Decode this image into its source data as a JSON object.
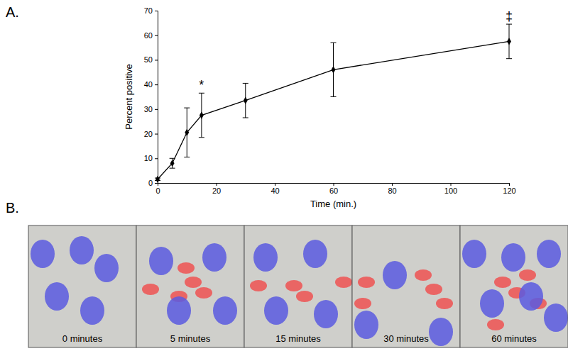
{
  "chart_data": {
    "type": "line",
    "x_label": "Time (min.)",
    "y_label": "Percent positive",
    "x": [
      0,
      5,
      10,
      15,
      30,
      60,
      120
    ],
    "values": [
      1.5,
      8,
      20.5,
      27.5,
      33.5,
      46,
      57.5
    ],
    "errors": [
      0.5,
      2,
      10,
      9,
      7,
      11,
      7
    ],
    "color": "#000000",
    "marker": "diamond",
    "xlim": [
      0,
      120
    ],
    "xticks": [
      0,
      20,
      40,
      60,
      80,
      100,
      120
    ],
    "ylim": [
      0,
      70
    ],
    "yticks": [
      0,
      10,
      20,
      30,
      40,
      50,
      60,
      70
    ],
    "grid": false,
    "annotations": [
      {
        "x": 15,
        "text": "*"
      },
      {
        "x": 120,
        "text": "‡"
      }
    ]
  },
  "panel_labels": [
    "A.",
    "B."
  ],
  "image_strip": {
    "captions": [
      "0 minutes",
      "5 minutes",
      "15 minutes",
      "30 minutes",
      "60 minutes"
    ]
  }
}
